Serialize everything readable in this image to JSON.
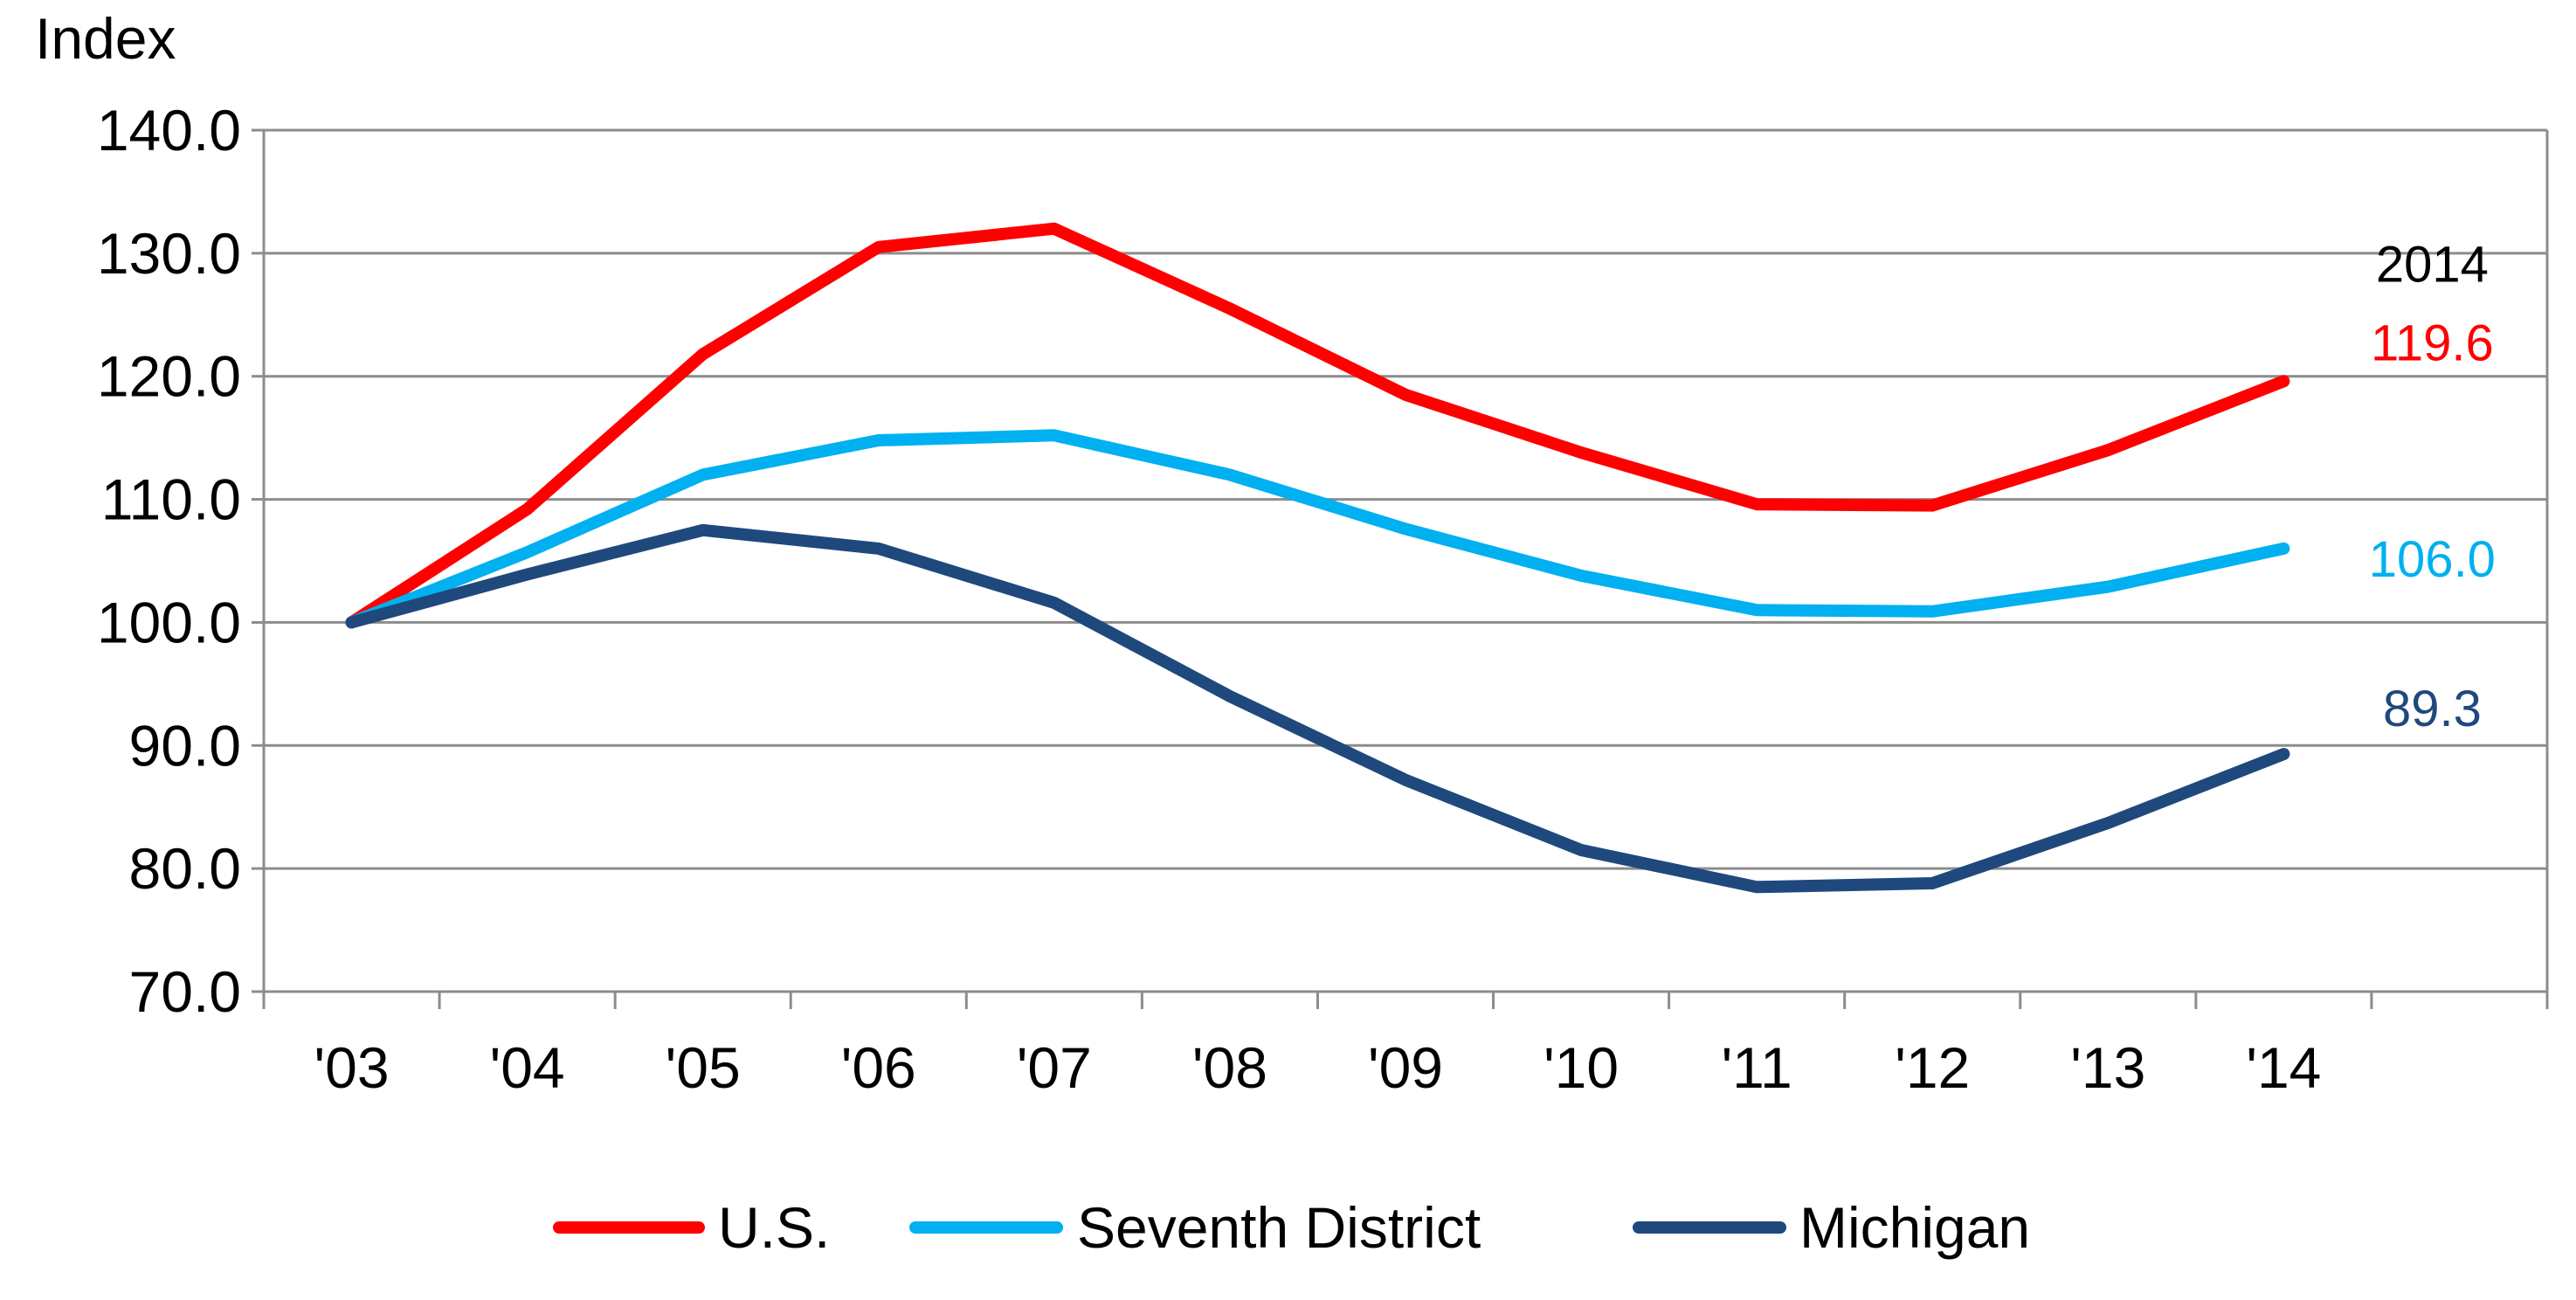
{
  "chart_data": {
    "type": "line",
    "ylabel": "Index",
    "ylim": [
      70,
      140
    ],
    "yticks": [
      70,
      80,
      90,
      100,
      110,
      120,
      130,
      140
    ],
    "ytick_labels": [
      "70.0",
      "80.0",
      "90.0",
      "100.0",
      "110.0",
      "120.0",
      "130.0",
      "140.0"
    ],
    "categories": [
      "'03",
      "'04",
      "'05",
      "'06",
      "'07",
      "'08",
      "'09",
      "'10",
      "'11",
      "'12",
      "'13",
      "'14"
    ],
    "grid": true,
    "legend": "bottom",
    "series": [
      {
        "name": "U.S.",
        "color": "#ff0000",
        "values": [
          100.0,
          109.2,
          121.8,
          130.5,
          132.0,
          125.5,
          118.5,
          113.8,
          109.6,
          109.5,
          114.0,
          119.6
        ]
      },
      {
        "name": "Seventh District",
        "color": "#00b0f0",
        "values": [
          100.0,
          105.7,
          112.0,
          114.8,
          115.2,
          112.0,
          107.6,
          103.8,
          101.0,
          100.9,
          102.9,
          106.0
        ]
      },
      {
        "name": "Michigan",
        "color": "#1f497d",
        "values": [
          100.0,
          103.9,
          107.5,
          106.0,
          101.6,
          94.0,
          87.2,
          81.5,
          78.5,
          78.8,
          83.7,
          89.3
        ]
      }
    ],
    "annotations": [
      {
        "text": "2014",
        "color": "#000000"
      },
      {
        "text": "119.6",
        "color": "#ff0000"
      },
      {
        "text": "106.0",
        "color": "#00b0f0"
      },
      {
        "text": "89.3",
        "color": "#1f497d"
      }
    ]
  }
}
